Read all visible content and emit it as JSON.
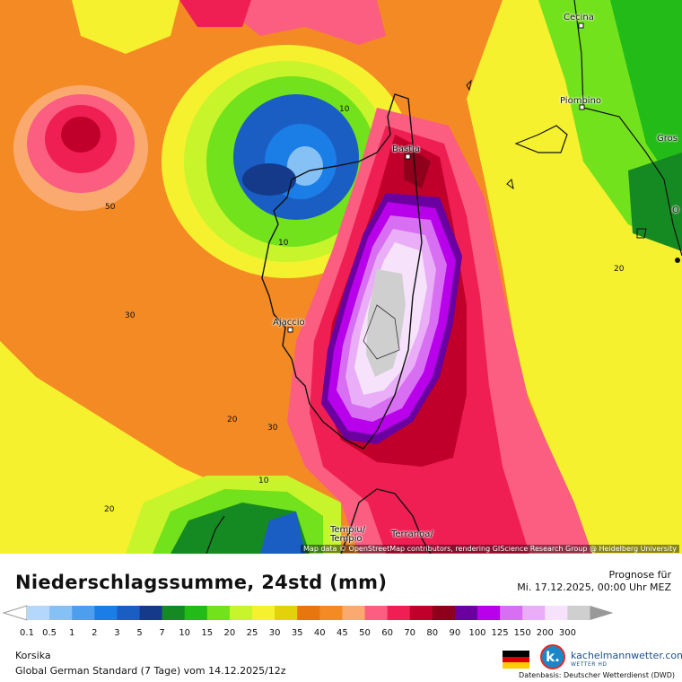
{
  "map": {
    "attribution": "Map data © OpenStreetMap contributors, rendering GIScience Research Group @ Heidelberg University",
    "cities": [
      {
        "name": "Cecina"
      },
      {
        "name": "Piombino"
      },
      {
        "name": "Bastia"
      },
      {
        "name": "Ajaccio"
      },
      {
        "name": "Gros"
      },
      {
        "name": "O"
      },
      {
        "name": "Tempiu/ Tempio"
      },
      {
        "name": "Terranoa/"
      }
    ],
    "contour_labels": [
      "10",
      "50",
      "10",
      "30",
      "20",
      "30",
      "10",
      "20",
      "20"
    ]
  },
  "panel": {
    "title": "Niederschlagssumme, 24std (mm)",
    "forecast_label": "Prognose für",
    "forecast_time": "Mi. 17.12.2025, 00:00 Uhr MEZ",
    "region": "Korsika",
    "model": "Global German Standard (7 Tage) vom  14.12.2025/12z",
    "brand_letter": "k.",
    "brand_name": "kachelmannwetter.com",
    "brand_sub": "WETTER HD",
    "source": "Datenbasis: Deutscher Wetterdienst (DWD)"
  },
  "legend": {
    "ticks": [
      "0.1",
      "0.5",
      "1",
      "2",
      "3",
      "5",
      "7",
      "10",
      "15",
      "20",
      "25",
      "30",
      "35",
      "40",
      "45",
      "50",
      "60",
      "70",
      "80",
      "90",
      "100",
      "125",
      "150",
      "200",
      "300"
    ],
    "colors": [
      "#b4d8fb",
      "#86c1f5",
      "#4e9ef0",
      "#1b7ee7",
      "#1a5ec4",
      "#163a8a",
      "#168a22",
      "#22bb17",
      "#72e21c",
      "#c7f42a",
      "#f6f12f",
      "#e3d10b",
      "#e8750d",
      "#f48a24",
      "#fbaa6f",
      "#fb5e80",
      "#f01f53",
      "#c0002a",
      "#8f001a",
      "#6a00a0",
      "#b800ea",
      "#d86ef2",
      "#e9aef7",
      "#f6e2fa",
      "#cfcfcf"
    ],
    "cap_color": "#999999"
  },
  "flag_colors": [
    "#000000",
    "#dd0000",
    "#ffce00"
  ]
}
